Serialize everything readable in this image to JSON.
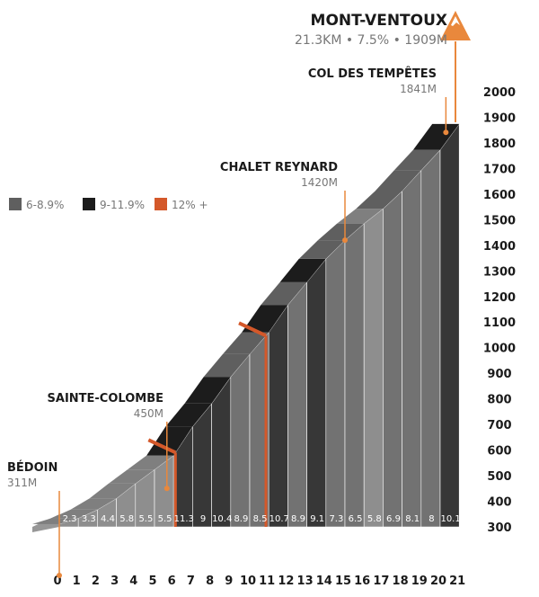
{
  "chart_data": {
    "type": "area",
    "title": "MONT-VENTOUX",
    "subtitle": "21.3KM • 7.5% • 1909M",
    "y_ticks": [
      2000,
      1900,
      1800,
      1700,
      1600,
      1500,
      1400,
      1300,
      1200,
      1100,
      1000,
      900,
      800,
      700,
      600,
      500,
      400,
      300
    ],
    "x_ticks": [
      0,
      1,
      2,
      3,
      4,
      5,
      6,
      7,
      8,
      9,
      10,
      11,
      12,
      13,
      14,
      15,
      16,
      17,
      18,
      19,
      20,
      21
    ],
    "ylim": [
      300,
      2000
    ],
    "xlim": [
      0,
      21
    ],
    "legend": {
      "placement": "left",
      "entries": [
        {
          "label": "6-8.9%",
          "color": "#5f5f5f"
        },
        {
          "label": "9-11.9%",
          "color": "#1c1c1c"
        },
        {
          "label": "12% +",
          "color": "#d4582a"
        }
      ]
    },
    "segments": [
      {
        "km": 0,
        "gradient": 2.3,
        "label": "2.3"
      },
      {
        "km": 1,
        "gradient": 3.3,
        "label": "3.3"
      },
      {
        "km": 2,
        "gradient": 4.4,
        "label": "4.4"
      },
      {
        "km": 3,
        "gradient": 5.8,
        "label": "5.8"
      },
      {
        "km": 4,
        "gradient": 5.5,
        "label": "5.5"
      },
      {
        "km": 5,
        "gradient": 5.5,
        "label": "5.5"
      },
      {
        "km": 6,
        "gradient": 11.3,
        "label": "11.3"
      },
      {
        "km": 7,
        "gradient": 9,
        "label": "9"
      },
      {
        "km": 8,
        "gradient": 10.4,
        "label": "10.4"
      },
      {
        "km": 9,
        "gradient": 8.9,
        "label": "8.9"
      },
      {
        "km": 10,
        "gradient": 8.5,
        "label": "8.5"
      },
      {
        "km": 11,
        "gradient": 10.7,
        "label": "10.7"
      },
      {
        "km": 12,
        "gradient": 8.9,
        "label": "8.9"
      },
      {
        "km": 13,
        "gradient": 9.1,
        "label": "9.1"
      },
      {
        "km": 14,
        "gradient": 7.3,
        "label": "7.3"
      },
      {
        "km": 15,
        "gradient": 6.5,
        "label": "6.5"
      },
      {
        "km": 16,
        "gradient": 5.8,
        "label": "5.8"
      },
      {
        "km": 17,
        "gradient": 6.9,
        "label": "6.9"
      },
      {
        "km": 18,
        "gradient": 8.1,
        "label": "8.1"
      },
      {
        "km": 19,
        "gradient": 8,
        "label": "8"
      },
      {
        "km": 20,
        "gradient": 10.1,
        "label": "10.1"
      }
    ],
    "steep_sections": [
      6.1,
      10.85
    ],
    "waypoints": [
      {
        "name": "BÉDOIN",
        "elevation_label": "311M",
        "km": 0,
        "elevation": 311
      },
      {
        "name": "SAINTE-COLOMBE",
        "elevation_label": "450M",
        "km": 5.65,
        "elevation": 450
      },
      {
        "name": "CHALET REYNARD",
        "elevation_label": "1420M",
        "km": 15,
        "elevation": 1420
      },
      {
        "name": "COL DES TEMPÊTES",
        "elevation_label": "1841M",
        "km": 20.3,
        "elevation": 1841
      }
    ],
    "summit": {
      "km": 21.3,
      "elevation": 1909
    },
    "grid": false
  }
}
